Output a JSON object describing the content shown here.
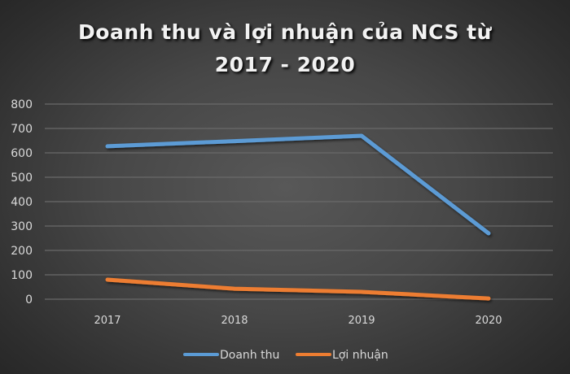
{
  "title_line1": "Doanh thu và lợi nhuận của NCS từ",
  "title_line2": "2017 - 2020",
  "chart_data": {
    "type": "line",
    "title": "Doanh thu và lợi nhuận của NCS từ 2017 - 2020",
    "xlabel": "",
    "ylabel": "",
    "categories": [
      "2017",
      "2018",
      "2019",
      "2020"
    ],
    "series": [
      {
        "name": "Doanh thu",
        "color": "#5b9bd5",
        "values": [
          627,
          648,
          670,
          270
        ]
      },
      {
        "name": "Lợi nhuận",
        "color": "#ed7d31",
        "values": [
          80,
          43,
          30,
          3
        ]
      }
    ],
    "yticks": [
      "0",
      "100",
      "200",
      "300",
      "400",
      "500",
      "600",
      "700",
      "800"
    ],
    "ylim": [
      0,
      800
    ],
    "grid": true,
    "legend_position": "bottom"
  }
}
